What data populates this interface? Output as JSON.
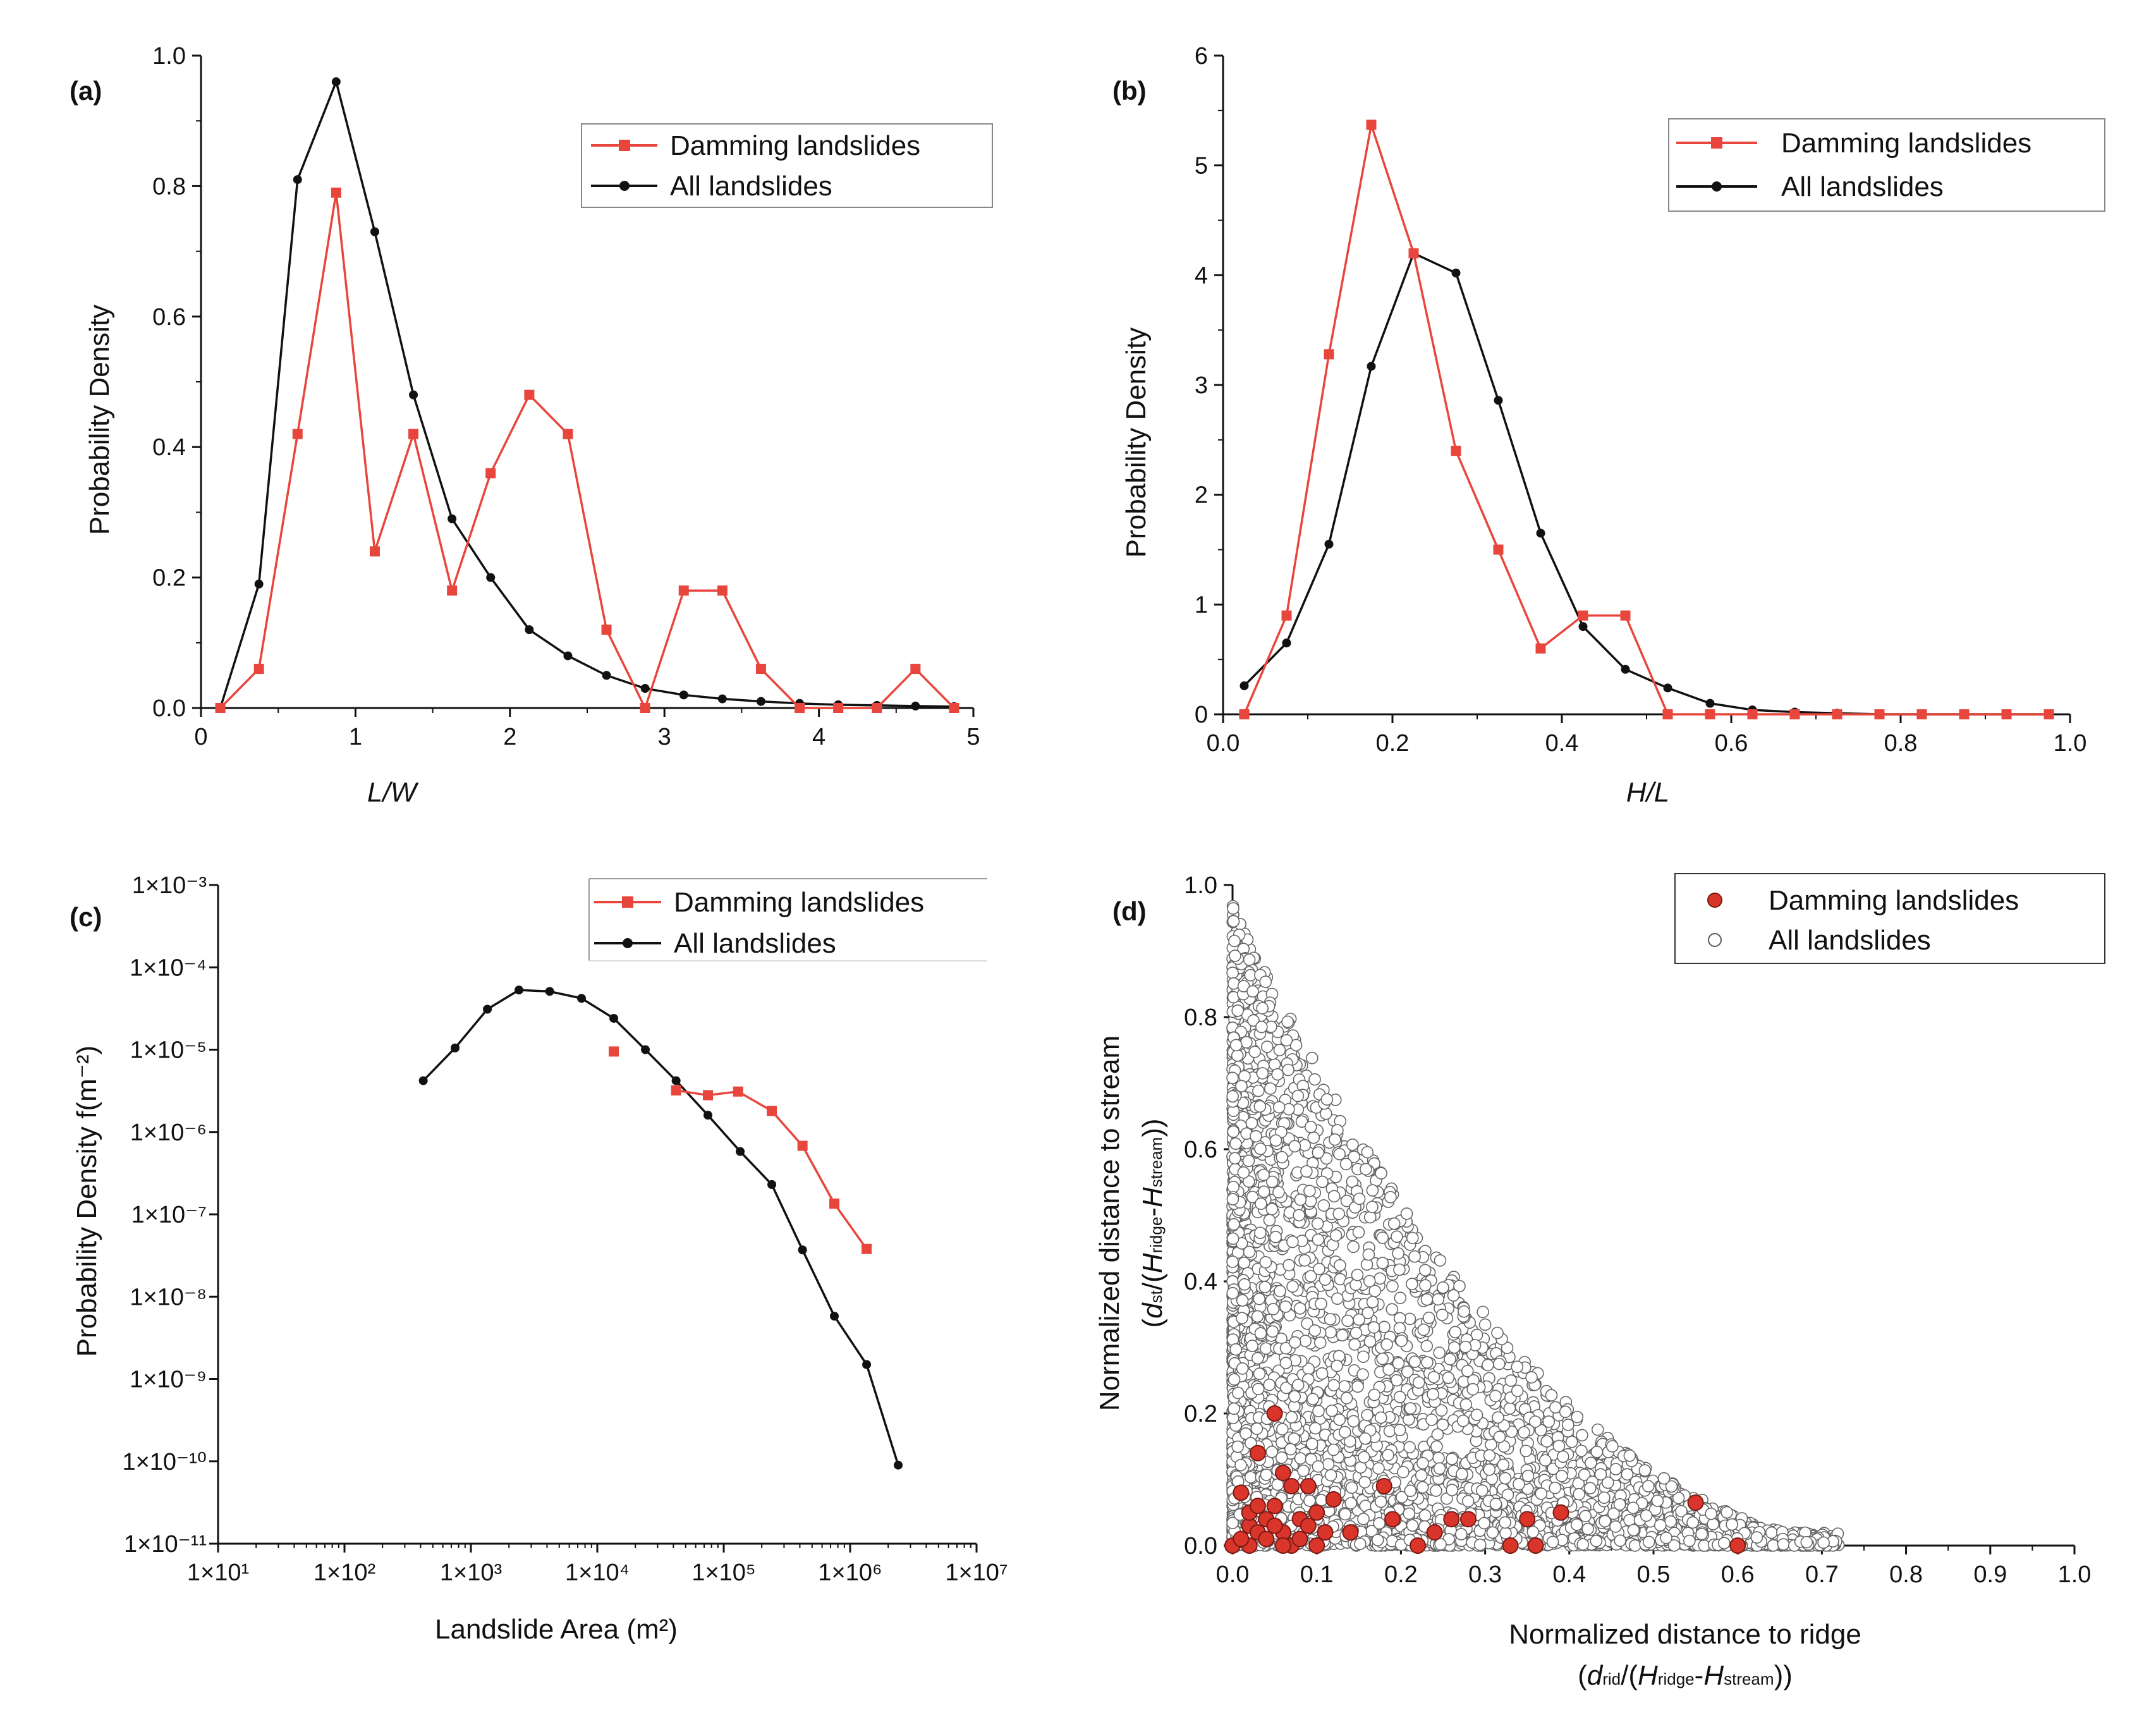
{
  "colors": {
    "damming": "#e8453c",
    "all": "#111111",
    "point_fill_red": "#d9352b",
    "axis": "#111111"
  },
  "chart_data": [
    {
      "panel": "(a)",
      "type": "line",
      "xlabel": "L/W",
      "ylabel": "Probability Density",
      "xlim": [
        0,
        5
      ],
      "ylim": [
        0,
        1.0
      ],
      "xticks": [
        "0",
        "1",
        "2",
        "3",
        "4",
        "5"
      ],
      "yticks": [
        "0.0",
        "0.2",
        "0.4",
        "0.6",
        "0.8",
        "1.0"
      ],
      "legend": {
        "position": "top-right",
        "entries": [
          "Damming landslides",
          "All landslides"
        ]
      },
      "series": [
        {
          "name": "Damming landslides",
          "marker": "square",
          "x": [
            0.125,
            0.375,
            0.625,
            0.875,
            1.125,
            1.375,
            1.625,
            1.875,
            2.125,
            2.375,
            2.625,
            2.875,
            3.125,
            3.375,
            3.625,
            3.875,
            4.125,
            4.375,
            4.625,
            4.875
          ],
          "y": [
            0.0,
            0.06,
            0.42,
            0.79,
            0.24,
            0.42,
            0.18,
            0.36,
            0.48,
            0.42,
            0.12,
            0.0,
            0.18,
            0.18,
            0.06,
            0.0,
            0.0,
            0.0,
            0.06,
            0.0
          ]
        },
        {
          "name": "All landslides",
          "marker": "circle",
          "x": [
            0.125,
            0.375,
            0.625,
            0.875,
            1.125,
            1.375,
            1.625,
            1.875,
            2.125,
            2.375,
            2.625,
            2.875,
            3.125,
            3.375,
            3.625,
            3.875,
            4.125,
            4.375,
            4.625,
            4.875
          ],
          "y": [
            0.0,
            0.19,
            0.81,
            0.96,
            0.73,
            0.48,
            0.29,
            0.2,
            0.12,
            0.08,
            0.05,
            0.03,
            0.02,
            0.014,
            0.01,
            0.007,
            0.005,
            0.004,
            0.003,
            0.002
          ]
        }
      ]
    },
    {
      "panel": "(b)",
      "type": "line",
      "xlabel": "H/L",
      "ylabel": "Probability Density",
      "xlim": [
        0,
        1.0
      ],
      "ylim": [
        0,
        6
      ],
      "xticks": [
        "0.0",
        "0.2",
        "0.4",
        "0.6",
        "0.8",
        "1.0"
      ],
      "yticks": [
        "0",
        "1",
        "2",
        "3",
        "4",
        "5",
        "6"
      ],
      "legend": {
        "position": "top-right",
        "entries": [
          "Damming landslides",
          "All landslides"
        ]
      },
      "series": [
        {
          "name": "Damming landslides",
          "marker": "square",
          "x": [
            0.025,
            0.075,
            0.125,
            0.175,
            0.225,
            0.275,
            0.325,
            0.375,
            0.425,
            0.475,
            0.525,
            0.575,
            0.625,
            0.675,
            0.725,
            0.775,
            0.825,
            0.875,
            0.925,
            0.975
          ],
          "y": [
            0.0,
            0.9,
            3.28,
            5.37,
            4.2,
            2.4,
            1.5,
            0.6,
            0.9,
            0.9,
            0.0,
            0.0,
            0.0,
            0.0,
            0.0,
            0.0,
            0.0,
            0.0,
            0.0,
            0.0
          ]
        },
        {
          "name": "All landslides",
          "marker": "circle",
          "x": [
            0.025,
            0.075,
            0.125,
            0.175,
            0.225,
            0.275,
            0.325,
            0.375,
            0.425,
            0.475,
            0.525,
            0.575,
            0.625,
            0.675,
            0.725,
            0.775,
            0.825,
            0.875,
            0.925,
            0.975
          ],
          "y": [
            0.26,
            0.65,
            1.55,
            3.17,
            4.2,
            4.02,
            2.86,
            1.65,
            0.8,
            0.41,
            0.24,
            0.1,
            0.04,
            0.02,
            0.01,
            0.0,
            0.0,
            0.0,
            0.0,
            0.0
          ]
        }
      ]
    },
    {
      "panel": "(c)",
      "type": "line",
      "xlabel": "Landslide Area (m²)",
      "ylabel": "Probability Density f(m⁻²)",
      "xscale": "log",
      "yscale": "log",
      "xlim": [
        10,
        10000000
      ],
      "ylim": [
        1e-11,
        0.001
      ],
      "xticks": [
        "1×10¹",
        "1×10²",
        "1×10³",
        "1×10⁴",
        "1×10⁵",
        "1×10⁶",
        "1×10⁷"
      ],
      "yticks": [
        "1×10⁻¹¹",
        "1×10⁻¹⁰",
        "1×10⁻⁹",
        "1×10⁻⁸",
        "1×10⁻⁷",
        "1×10⁻⁶",
        "1×10⁻⁵",
        "1×10⁻⁴",
        "1×10⁻³"
      ],
      "legend": {
        "position": "top-right",
        "entries": [
          "Damming landslides",
          "All landslides"
        ]
      },
      "series": [
        {
          "name": "Damming landslides",
          "marker": "square",
          "isolated_first_point": true,
          "x": [
            13500,
            42000,
            75000,
            130000,
            240000,
            420000,
            750000,
            1350000
          ],
          "y": [
            9.5e-06,
            3.2e-06,
            2.8e-06,
            3.1e-06,
            1.8e-06,
            6.8e-07,
            1.35e-07,
            3.8e-08
          ]
        },
        {
          "name": "All landslides",
          "marker": "circle",
          "x": [
            420,
            750,
            1350,
            2400,
            4200,
            7500,
            13500,
            24000,
            42000,
            75000,
            135000,
            240000,
            420000,
            750000,
            1350000,
            2400000
          ],
          "y": [
            4.2e-06,
            1.05e-05,
            3.1e-05,
            5.3e-05,
            5.1e-05,
            4.2e-05,
            2.4e-05,
            1e-05,
            4.2e-06,
            1.6e-06,
            5.8e-07,
            2.3e-07,
            3.7e-08,
            5.8e-09,
            1.5e-09,
            9e-11
          ]
        }
      ]
    },
    {
      "panel": "(d)",
      "type": "scatter",
      "xlabel": "Normalized distance to ridge",
      "xlabel_sub": "(drid/(Hridge-Hstream))",
      "ylabel": "Normalized distance to stream",
      "ylabel_sub": "(dst/(Hridge-Hstream))",
      "xlim": [
        0,
        1.0
      ],
      "ylim": [
        0,
        1.0
      ],
      "xticks": [
        "0.0",
        "0.1",
        "0.2",
        "0.3",
        "0.4",
        "0.5",
        "0.6",
        "0.7",
        "0.8",
        "0.9",
        "1.0"
      ],
      "yticks": [
        "0.0",
        "0.2",
        "0.4",
        "0.6",
        "0.8",
        "1.0"
      ],
      "legend": {
        "position": "top-right",
        "entries": [
          "Damming landslides",
          "All landslides"
        ]
      },
      "series": [
        {
          "name": "Damming landslides",
          "marker": "filled-circle",
          "points": [
            [
              0.0,
              0.0
            ],
            [
              0.01,
              0.08
            ],
            [
              0.02,
              0.03
            ],
            [
              0.03,
              0.14
            ],
            [
              0.05,
              0.2
            ],
            [
              0.05,
              0.06
            ],
            [
              0.06,
              0.11
            ],
            [
              0.07,
              0.09
            ],
            [
              0.08,
              0.04
            ],
            [
              0.09,
              0.09
            ],
            [
              0.1,
              0.05
            ],
            [
              0.12,
              0.07
            ],
            [
              0.14,
              0.02
            ],
            [
              0.18,
              0.09
            ],
            [
              0.19,
              0.04
            ],
            [
              0.22,
              0.0
            ],
            [
              0.24,
              0.02
            ],
            [
              0.26,
              0.04
            ],
            [
              0.28,
              0.04
            ],
            [
              0.33,
              0.0
            ],
            [
              0.35,
              0.04
            ],
            [
              0.36,
              0.0
            ],
            [
              0.39,
              0.05
            ],
            [
              0.55,
              0.065
            ],
            [
              0.6,
              0.0
            ],
            [
              0.02,
              0.0
            ],
            [
              0.03,
              0.02
            ],
            [
              0.04,
              0.01
            ],
            [
              0.06,
              0.02
            ],
            [
              0.07,
              0.0
            ],
            [
              0.08,
              0.01
            ],
            [
              0.1,
              0.0
            ],
            [
              0.11,
              0.02
            ],
            [
              0.04,
              0.04
            ],
            [
              0.02,
              0.05
            ],
            [
              0.09,
              0.03
            ],
            [
              0.06,
              0.0
            ],
            [
              0.05,
              0.03
            ],
            [
              0.01,
              0.01
            ],
            [
              0.03,
              0.06
            ]
          ]
        },
        {
          "name": "All landslides",
          "marker": "hollow-circle",
          "generated_cloud": true
        }
      ]
    }
  ]
}
